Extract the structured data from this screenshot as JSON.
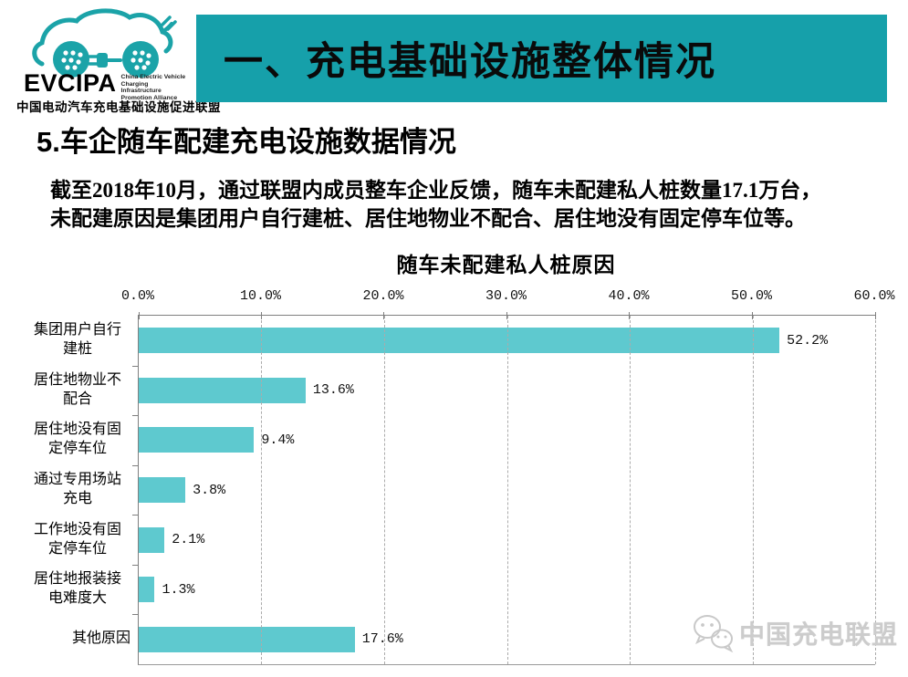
{
  "logo": {
    "brand": "EVCIPA",
    "tagline": [
      "China Electric Vehicle",
      "Charging Infrastructure",
      "Promotion Alliance"
    ],
    "cn_name": "中国电动汽车充电基础设施促进联盟",
    "teal": "#1ba3a8"
  },
  "banner": {
    "title": "一、充电基础设施整体情况",
    "bg": "#16a0aa"
  },
  "heading": {
    "number": "5.",
    "text": "车企随车配建充电设施数据情况"
  },
  "intro": {
    "line1": "截至2018年10月，通过联盟内成员整车企业反馈，随车未配建私人桩数量17.1万台，",
    "line2": "未配建原因是集团用户自行建桩、居住地物业不配合、居住地没有固定停车位等。"
  },
  "chart_data": {
    "type": "bar",
    "orientation": "horizontal",
    "title": "随车未配建私人桩原因",
    "categories": [
      "集团用户自行建桩",
      "居住地物业不配合",
      "居住地没有固定停车位",
      "通过专用场站充电",
      "工作地没有固定停车位",
      "居住地报装接电难度大",
      "其他原因"
    ],
    "category_lines": [
      [
        "集团用户自行",
        "建桩"
      ],
      [
        "居住地物业不",
        "配合"
      ],
      [
        "居住地没有固",
        "定停车位"
      ],
      [
        "通过专用场站",
        "充电"
      ],
      [
        "工作地没有固",
        "定停车位"
      ],
      [
        "居住地报装接",
        "电难度大"
      ],
      [
        "其他原因"
      ]
    ],
    "values": [
      52.2,
      13.6,
      9.4,
      3.8,
      2.1,
      1.3,
      17.6
    ],
    "value_labels": [
      "52.2%",
      "13.6%",
      "9.4%",
      "3.8%",
      "2.1%",
      "1.3%",
      "17.6%"
    ],
    "x_tick_labels": [
      "0.0%",
      "10.0%",
      "20.0%",
      "30.0%",
      "40.0%",
      "50.0%",
      "60.0%"
    ],
    "xlim": [
      0,
      60
    ],
    "grid": "vertical-dashed",
    "legend": "none",
    "bar_color": "#5ec9cf"
  },
  "watermark": {
    "text": "中国充电联盟"
  }
}
